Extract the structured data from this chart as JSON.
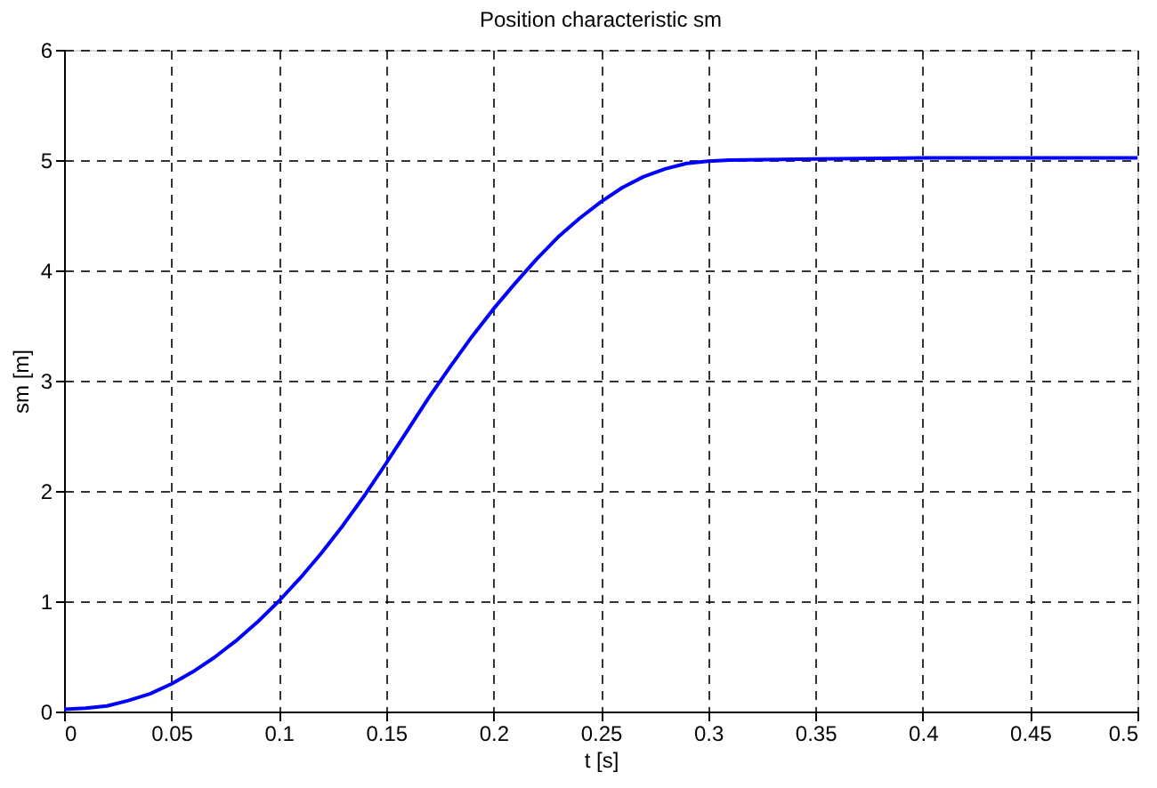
{
  "chart_data": {
    "type": "line",
    "title": "Position characteristic sm",
    "xlabel": "t [s]",
    "ylabel": "sm [m]",
    "x": [
      0,
      0.01,
      0.02,
      0.03,
      0.04,
      0.05,
      0.06,
      0.07,
      0.08,
      0.09,
      0.1,
      0.11,
      0.12,
      0.13,
      0.14,
      0.15,
      0.16,
      0.17,
      0.18,
      0.19,
      0.2,
      0.21,
      0.22,
      0.23,
      0.24,
      0.25,
      0.26,
      0.27,
      0.28,
      0.29,
      0.3,
      0.31,
      0.35,
      0.4,
      0.45,
      0.5
    ],
    "series": [
      {
        "color": "#0000ff",
        "values": [
          0.02,
          0.03,
          0.05,
          0.1,
          0.16,
          0.25,
          0.36,
          0.49,
          0.64,
          0.81,
          1.0,
          1.21,
          1.44,
          1.69,
          1.96,
          2.25,
          2.55,
          2.85,
          3.13,
          3.4,
          3.65,
          3.88,
          4.1,
          4.3,
          4.47,
          4.62,
          4.75,
          4.85,
          4.92,
          4.97,
          4.99,
          5.0,
          5.01,
          5.02,
          5.02,
          5.02
        ]
      }
    ],
    "xlim": [
      0,
      0.5
    ],
    "xticks": [
      0,
      0.05,
      0.1,
      0.15,
      0.2,
      0.25,
      0.3,
      0.35,
      0.4,
      0.45,
      0.5
    ],
    "ylim": [
      0,
      6
    ],
    "yticks": [
      0,
      1,
      2,
      3,
      4,
      5,
      6
    ],
    "grid": true,
    "line_style": "solid",
    "marker": "none",
    "legend": false
  }
}
